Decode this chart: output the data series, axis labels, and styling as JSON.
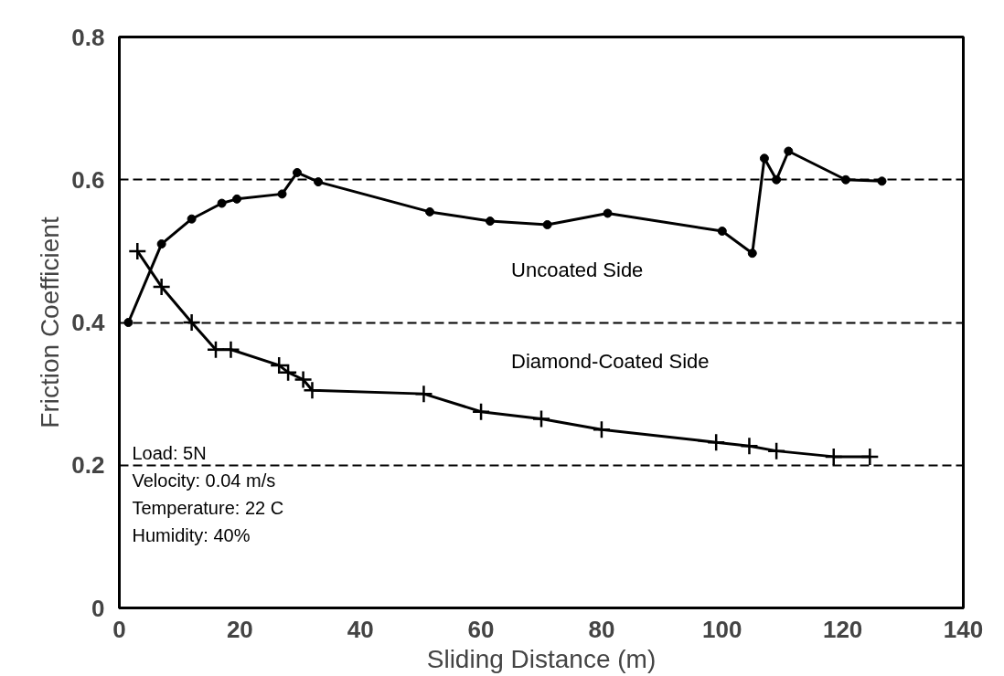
{
  "chart_data": {
    "type": "line",
    "xlabel": "Sliding Distance (m)",
    "ylabel": "Friction Coefficient",
    "xlim": [
      0,
      140
    ],
    "ylim": [
      0,
      0.8
    ],
    "xticks": [
      0,
      20,
      40,
      60,
      80,
      100,
      120,
      140
    ],
    "yticks": [
      0,
      0.2,
      0.4,
      0.6,
      0.8
    ],
    "grid": "y",
    "line_style": "solid",
    "series": [
      {
        "name": "Uncoated Side",
        "color": "#000000",
        "marker": "circle",
        "x": [
          1.5,
          7,
          12,
          17,
          19.5,
          27,
          29.5,
          33,
          51.5,
          61.5,
          71,
          81,
          100,
          105,
          107,
          109,
          111,
          120.5,
          126.5
        ],
        "values": [
          0.4,
          0.51,
          0.545,
          0.567,
          0.573,
          0.58,
          0.61,
          0.597,
          0.555,
          0.542,
          0.537,
          0.553,
          0.528,
          0.497,
          0.63,
          0.6,
          0.64,
          0.6,
          0.598
        ]
      },
      {
        "name": "Diamond-Coated Side",
        "color": "#000000",
        "marker": "cross",
        "x": [
          3,
          7,
          12,
          16,
          18.5,
          26.5,
          28,
          30.5,
          32,
          50.5,
          60,
          70,
          80,
          99,
          104.5,
          109,
          118.5,
          124.5
        ],
        "values": [
          0.5,
          0.45,
          0.4,
          0.362,
          0.362,
          0.34,
          0.33,
          0.32,
          0.305,
          0.3,
          0.275,
          0.265,
          0.25,
          0.232,
          0.227,
          0.22,
          0.212,
          0.212
        ]
      }
    ],
    "annotations": [
      "Load: 5N",
      "Velocity: 0.04 m/s",
      "Temperature: 22 C",
      "Humidity: 40%"
    ]
  }
}
